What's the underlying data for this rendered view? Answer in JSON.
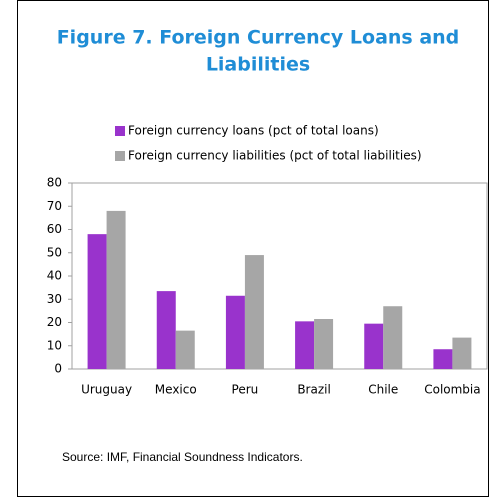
{
  "chart_data": {
    "type": "bar",
    "title": [
      "Figure 7. Foreign Currency Loans and",
      "Liabilities"
    ],
    "categories": [
      "Uruguay",
      "Mexico",
      "Peru",
      "Brazil",
      "Chile",
      "Colombia"
    ],
    "series": [
      {
        "name": "Foreign currency loans (pct of total loans)",
        "color": "#9933cc",
        "values": [
          58,
          33.5,
          31.5,
          20.5,
          19.5,
          8.5
        ]
      },
      {
        "name": "Foreign currency liabilities (pct of total liabilities)",
        "color": "#a6a6a6",
        "values": [
          68,
          16.5,
          49,
          21.5,
          27,
          13.5
        ]
      }
    ],
    "ylim": [
      0,
      80
    ],
    "yticks": [
      0,
      10,
      20,
      30,
      40,
      50,
      60,
      70,
      80
    ],
    "source": "Source: IMF, Financial Soundness Indicators."
  }
}
